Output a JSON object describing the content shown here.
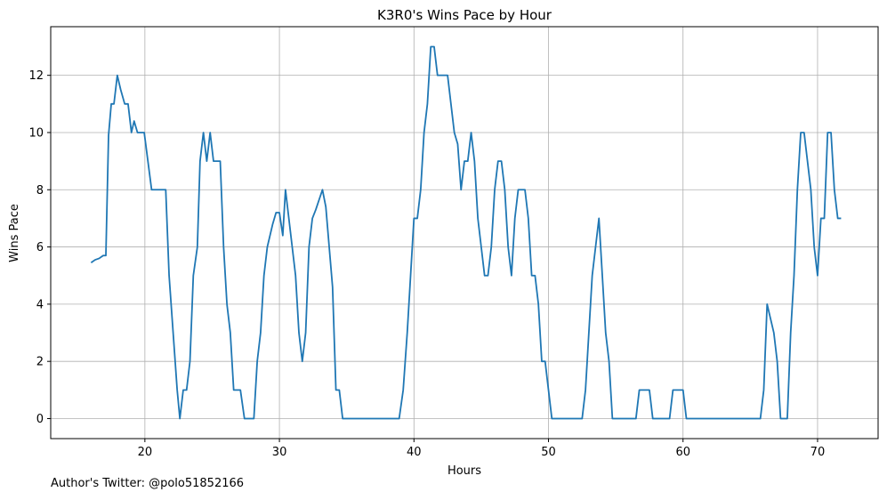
{
  "chart_data": {
    "type": "line",
    "title": "K3R0's Wins Pace by Hour",
    "xlabel": "Hours",
    "ylabel": "Wins Pace",
    "xlim": [
      13,
      74.5
    ],
    "ylim": [
      -0.7,
      13.7
    ],
    "xticks": [
      20,
      30,
      40,
      50,
      60,
      70
    ],
    "yticks": [
      0,
      2,
      4,
      6,
      8,
      10,
      12
    ],
    "grid": true,
    "line_color": "#1f77b4",
    "series": [
      {
        "points": [
          [
            16.0,
            5.45
          ],
          [
            16.3,
            5.55
          ],
          [
            16.6,
            5.6
          ],
          [
            16.9,
            5.7
          ],
          [
            17.1,
            5.7
          ],
          [
            17.3,
            9.9
          ],
          [
            17.5,
            11.0
          ],
          [
            17.7,
            11.0
          ],
          [
            17.95,
            12.0
          ],
          [
            18.2,
            11.5
          ],
          [
            18.5,
            11.0
          ],
          [
            18.75,
            11.0
          ],
          [
            19.0,
            10.0
          ],
          [
            19.2,
            10.4
          ],
          [
            19.45,
            10.0
          ],
          [
            19.7,
            10.0
          ],
          [
            19.95,
            10.0
          ],
          [
            20.5,
            8.0
          ],
          [
            20.8,
            8.0
          ],
          [
            21.0,
            8.0
          ],
          [
            21.3,
            8.0
          ],
          [
            21.55,
            8.0
          ],
          [
            21.8,
            5.0
          ],
          [
            22.1,
            3.0
          ],
          [
            22.4,
            1.0
          ],
          [
            22.6,
            0.0
          ],
          [
            22.85,
            1.0
          ],
          [
            23.1,
            1.0
          ],
          [
            23.35,
            2.0
          ],
          [
            23.6,
            5.0
          ],
          [
            23.9,
            6.0
          ],
          [
            24.1,
            9.0
          ],
          [
            24.35,
            10.0
          ],
          [
            24.6,
            9.0
          ],
          [
            24.85,
            10.0
          ],
          [
            25.1,
            9.0
          ],
          [
            25.35,
            9.0
          ],
          [
            25.6,
            9.0
          ],
          [
            25.85,
            6.0
          ],
          [
            26.1,
            4.0
          ],
          [
            26.35,
            3.0
          ],
          [
            26.6,
            1.0
          ],
          [
            26.85,
            1.0
          ],
          [
            27.1,
            1.0
          ],
          [
            27.4,
            0.0
          ],
          [
            27.65,
            0.0
          ],
          [
            27.9,
            0.0
          ],
          [
            28.1,
            0.0
          ],
          [
            28.35,
            2.0
          ],
          [
            28.6,
            3.0
          ],
          [
            28.85,
            5.0
          ],
          [
            29.1,
            6.0
          ],
          [
            29.5,
            6.8
          ],
          [
            29.75,
            7.2
          ],
          [
            30.0,
            7.2
          ],
          [
            30.25,
            6.4
          ],
          [
            30.45,
            8.0
          ],
          [
            30.7,
            7.0
          ],
          [
            30.95,
            6.0
          ],
          [
            31.2,
            5.0
          ],
          [
            31.45,
            3.0
          ],
          [
            31.7,
            2.0
          ],
          [
            31.95,
            3.0
          ],
          [
            32.2,
            6.0
          ],
          [
            32.45,
            7.0
          ],
          [
            32.7,
            7.3
          ],
          [
            32.95,
            7.65
          ],
          [
            33.2,
            8.0
          ],
          [
            33.45,
            7.4
          ],
          [
            33.7,
            6.0
          ],
          [
            33.95,
            4.6
          ],
          [
            34.2,
            1.0
          ],
          [
            34.45,
            1.0
          ],
          [
            34.7,
            0.0
          ],
          [
            34.95,
            0.0
          ],
          [
            35.5,
            0.0
          ],
          [
            36.5,
            0.0
          ],
          [
            37.5,
            0.0
          ],
          [
            38.5,
            0.0
          ],
          [
            38.9,
            0.0
          ],
          [
            39.2,
            1.0
          ],
          [
            39.5,
            3.0
          ],
          [
            39.75,
            5.0
          ],
          [
            40.0,
            7.0
          ],
          [
            40.25,
            7.0
          ],
          [
            40.5,
            8.0
          ],
          [
            40.75,
            10.0
          ],
          [
            41.0,
            11.0
          ],
          [
            41.25,
            13.0
          ],
          [
            41.5,
            13.0
          ],
          [
            41.75,
            12.0
          ],
          [
            42.0,
            12.0
          ],
          [
            42.25,
            12.0
          ],
          [
            42.5,
            12.0
          ],
          [
            42.75,
            11.0
          ],
          [
            43.0,
            10.0
          ],
          [
            43.25,
            9.6
          ],
          [
            43.5,
            8.0
          ],
          [
            43.75,
            9.0
          ],
          [
            44.0,
            9.0
          ],
          [
            44.25,
            10.0
          ],
          [
            44.5,
            9.0
          ],
          [
            44.75,
            7.0
          ],
          [
            45.0,
            6.0
          ],
          [
            45.25,
            5.0
          ],
          [
            45.5,
            5.0
          ],
          [
            45.75,
            6.0
          ],
          [
            46.0,
            8.0
          ],
          [
            46.25,
            9.0
          ],
          [
            46.5,
            9.0
          ],
          [
            46.75,
            8.0
          ],
          [
            47.0,
            6.0
          ],
          [
            47.25,
            5.0
          ],
          [
            47.5,
            7.0
          ],
          [
            47.75,
            8.0
          ],
          [
            48.0,
            8.0
          ],
          [
            48.25,
            8.0
          ],
          [
            48.5,
            7.0
          ],
          [
            48.75,
            5.0
          ],
          [
            49.0,
            5.0
          ],
          [
            49.25,
            4.0
          ],
          [
            49.5,
            2.0
          ],
          [
            49.75,
            2.0
          ],
          [
            50.0,
            1.0
          ],
          [
            50.25,
            0.0
          ],
          [
            50.5,
            0.0
          ],
          [
            51.0,
            0.0
          ],
          [
            51.5,
            0.0
          ],
          [
            52.0,
            0.0
          ],
          [
            52.5,
            0.0
          ],
          [
            52.75,
            1.0
          ],
          [
            53.0,
            3.0
          ],
          [
            53.25,
            5.0
          ],
          [
            53.5,
            6.0
          ],
          [
            53.75,
            7.0
          ],
          [
            54.0,
            5.0
          ],
          [
            54.25,
            3.0
          ],
          [
            54.5,
            2.0
          ],
          [
            54.75,
            0.0
          ],
          [
            55.0,
            0.0
          ],
          [
            55.5,
            0.0
          ],
          [
            56.0,
            0.0
          ],
          [
            56.5,
            0.0
          ],
          [
            56.75,
            1.0
          ],
          [
            57.0,
            1.0
          ],
          [
            57.5,
            1.0
          ],
          [
            57.75,
            0.0
          ],
          [
            58.0,
            0.0
          ],
          [
            58.5,
            0.0
          ],
          [
            59.0,
            0.0
          ],
          [
            59.25,
            1.0
          ],
          [
            59.5,
            1.0
          ],
          [
            60.0,
            1.0
          ],
          [
            60.25,
            0.0
          ],
          [
            60.5,
            0.0
          ],
          [
            61.5,
            0.0
          ],
          [
            62.5,
            0.0
          ],
          [
            63.5,
            0.0
          ],
          [
            64.5,
            0.0
          ],
          [
            65.5,
            0.0
          ],
          [
            65.75,
            0.0
          ],
          [
            66.0,
            1.0
          ],
          [
            66.25,
            4.0
          ],
          [
            66.5,
            3.5
          ],
          [
            66.75,
            3.0
          ],
          [
            67.0,
            2.0
          ],
          [
            67.25,
            0.0
          ],
          [
            67.5,
            0.0
          ],
          [
            67.75,
            0.0
          ],
          [
            68.0,
            3.0
          ],
          [
            68.25,
            5.0
          ],
          [
            68.5,
            8.0
          ],
          [
            68.75,
            10.0
          ],
          [
            69.0,
            10.0
          ],
          [
            69.25,
            9.0
          ],
          [
            69.5,
            8.0
          ],
          [
            69.75,
            6.0
          ],
          [
            70.0,
            5.0
          ],
          [
            70.25,
            7.0
          ],
          [
            70.5,
            7.0
          ],
          [
            70.75,
            10.0
          ],
          [
            71.0,
            10.0
          ],
          [
            71.25,
            8.0
          ],
          [
            71.5,
            7.0
          ],
          [
            71.75,
            7.0
          ]
        ]
      }
    ]
  },
  "footer": {
    "credit": "Author's Twitter: @polo51852166"
  }
}
